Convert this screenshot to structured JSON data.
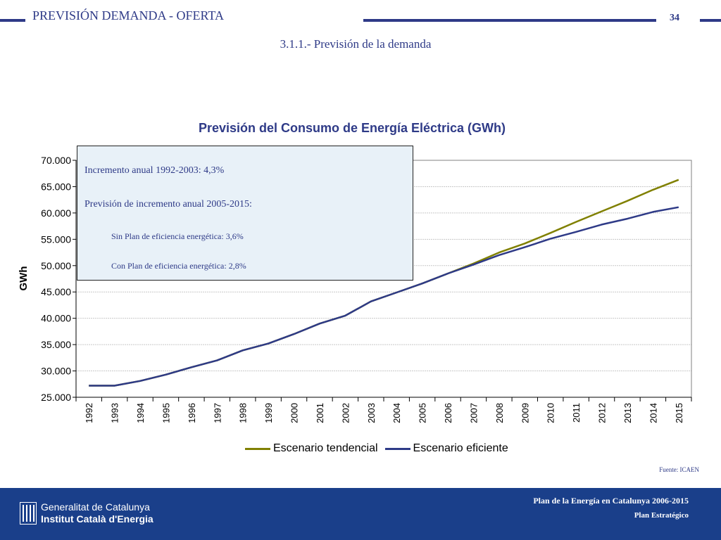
{
  "header": {
    "section_title": "PREVISIÓN DEMANDA - OFERTA",
    "page_number": "34",
    "subtitle": "3.1.1.- Previsión de la demanda",
    "rule_color": "#2e3a87"
  },
  "chart_data": {
    "type": "line",
    "title": "Previsión del Consumo de Energía Eléctrica (GWh)",
    "xlabel": "",
    "ylabel": "GWh",
    "ylim": [
      25000,
      70000
    ],
    "y_ticks": [
      25000,
      30000,
      35000,
      40000,
      45000,
      50000,
      55000,
      60000,
      65000,
      70000
    ],
    "y_tick_labels": [
      "25.000",
      "30.000",
      "35.000",
      "40.000",
      "45.000",
      "50.000",
      "55.000",
      "60.000",
      "65.000",
      "70.000"
    ],
    "grid": "horizontal",
    "legend_position": "bottom",
    "categories": [
      "1992",
      "1993",
      "1994",
      "1995",
      "1996",
      "1997",
      "1998",
      "1999",
      "2000",
      "2001",
      "2002",
      "2003",
      "2004",
      "2005",
      "2006",
      "2007",
      "2008",
      "2009",
      "2010",
      "2011",
      "2012",
      "2013",
      "2014",
      "2015"
    ],
    "series": [
      {
        "name": "Escenario tendencial",
        "color": "#808000",
        "values": [
          27200,
          27200,
          28100,
          29300,
          30700,
          32000,
          33900,
          35200,
          37000,
          39000,
          40500,
          43200,
          44900,
          46600,
          48500,
          50400,
          52500,
          54200,
          56200,
          58300,
          60300,
          62300,
          64400,
          66300
        ]
      },
      {
        "name": "Escenario eficiente",
        "color": "#2e3a87",
        "values": [
          27200,
          27200,
          28100,
          29300,
          30700,
          32000,
          33900,
          35200,
          37000,
          39000,
          40500,
          43200,
          44900,
          46600,
          48500,
          50200,
          52000,
          53500,
          55100,
          56400,
          57800,
          58900,
          60200,
          61100
        ]
      }
    ],
    "annotations": {
      "line1": "Incremento anual 1992-2003: 4,3%",
      "line2": "Previsión de incremento anual 2005-2015:",
      "line3": "Sin Plan de eficiencia energética: 3,6%",
      "line4": "Con Plan de eficiencia energética: 2,8%"
    },
    "source": "Fuente: ICAEN"
  },
  "footer": {
    "background": "#1a3f8a",
    "org_line1": "Generalitat de Catalunya",
    "org_line2": "Institut Català d'Energia",
    "plan_line1": "Plan de la Energía en Catalunya 2006-2015",
    "plan_line2": "Plan Estratégico"
  }
}
